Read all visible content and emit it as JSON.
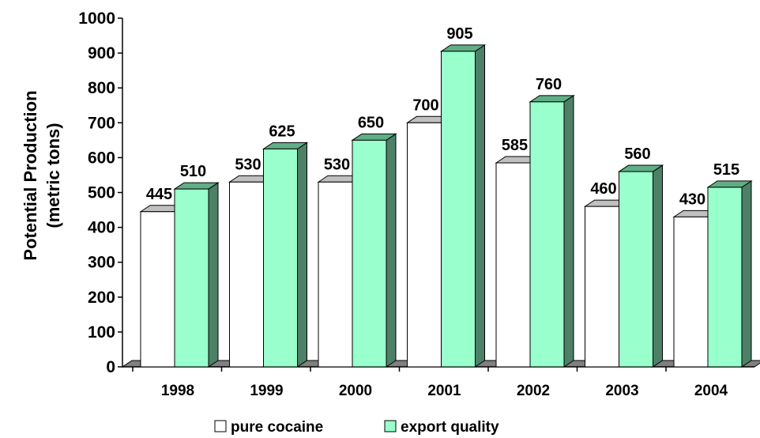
{
  "chart_data": {
    "type": "bar",
    "title": "",
    "xlabel": "",
    "ylabel": "Potential Production",
    "ylabel2": "(metric tons)",
    "categories": [
      "1998",
      "1999",
      "2000",
      "2001",
      "2002",
      "2003",
      "2004"
    ],
    "series": [
      {
        "name": "pure cocaine",
        "values": [
          445,
          530,
          530,
          700,
          585,
          460,
          430
        ],
        "color": "#ffffff"
      },
      {
        "name": "export quality",
        "values": [
          510,
          625,
          650,
          905,
          760,
          560,
          515
        ],
        "color": "#99ffcc"
      }
    ],
    "ylim": [
      0,
      1000
    ],
    "yticks": [
      "0",
      "100",
      "200",
      "300",
      "400",
      "500",
      "600",
      "700",
      "800",
      "900",
      "1000"
    ],
    "grid": false,
    "legend": "bottom",
    "style": "3d-column"
  }
}
